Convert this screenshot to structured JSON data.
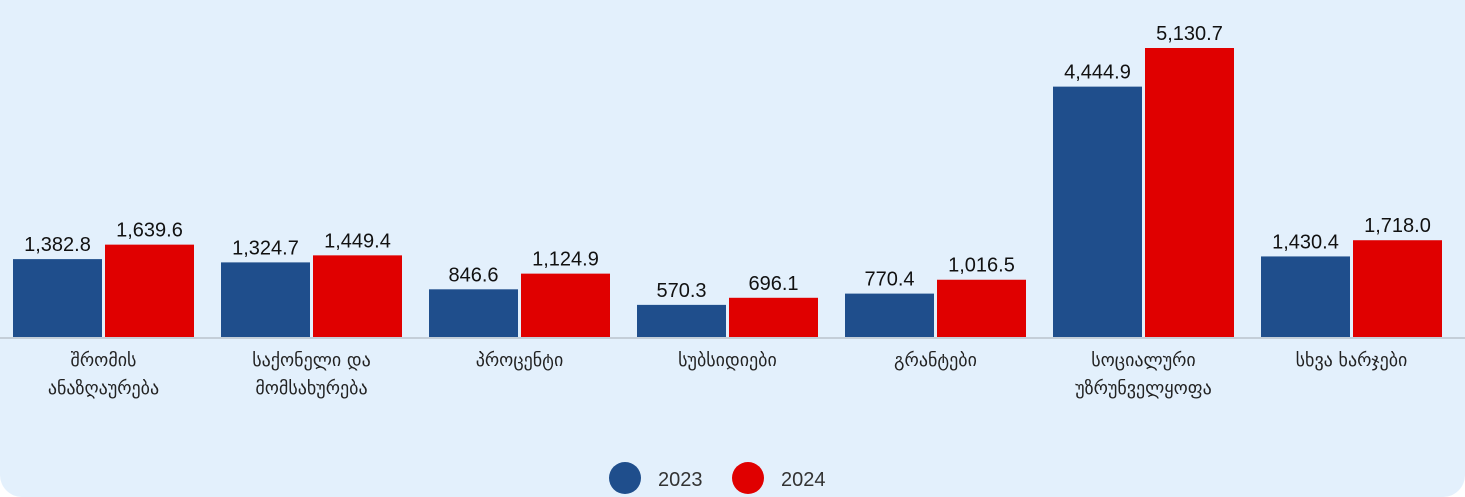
{
  "chart_data": {
    "type": "bar",
    "categories": [
      [
        "შრომის",
        "ანაზღაურება"
      ],
      [
        "საქონელი და",
        "მომსახურება"
      ],
      [
        "პროცენტი"
      ],
      [
        "სუბსიდიები"
      ],
      [
        "გრანტები"
      ],
      [
        "სოციალური",
        "უზრუნველყოფა"
      ],
      [
        "სხვა ხარჯები"
      ]
    ],
    "series": [
      {
        "name": "2023",
        "color": "#1f4e8c",
        "values": [
          1382.8,
          1324.7,
          846.6,
          570.3,
          770.4,
          4444.9,
          1430.4
        ],
        "value_labels": [
          "1,382.8",
          "1,324.7",
          "846.6",
          "570.3",
          "770.4",
          "4,444.9",
          "1,430.4"
        ]
      },
      {
        "name": "2024",
        "color": "#e00000",
        "values": [
          1639.6,
          1449.4,
          1124.9,
          696.1,
          1016.5,
          5130.7,
          1718.0
        ],
        "value_labels": [
          "1,639.6",
          "1,449.4",
          "1,124.9",
          "696.1",
          "1,016.5",
          "5,130.7",
          "1,718.0"
        ]
      }
    ],
    "legend": "bottom"
  }
}
